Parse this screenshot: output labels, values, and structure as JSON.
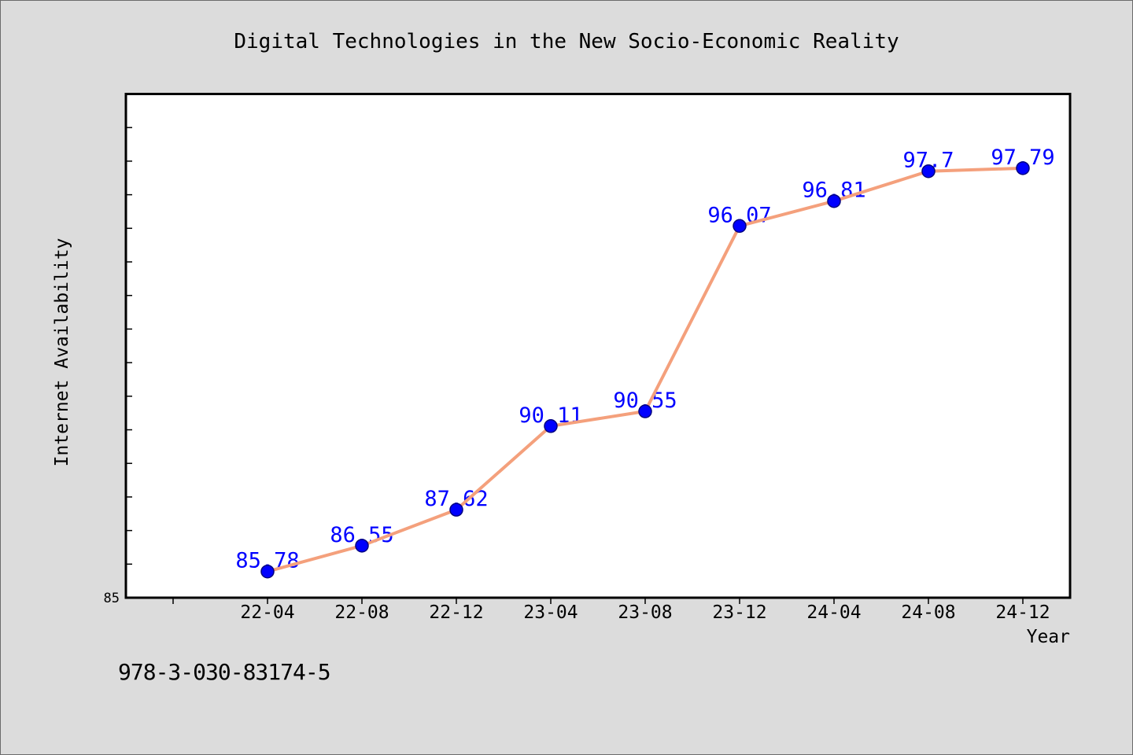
{
  "chart_data": {
    "type": "line",
    "title": "Digital Technologies in the New Socio-Economic Reality",
    "xlabel": "Year",
    "ylabel": "Internet Availability",
    "categories": [
      "22-04",
      "22-08",
      "22-12",
      "23-04",
      "23-08",
      "23-12",
      "24-04",
      "24-08",
      "24-12"
    ],
    "series": [
      {
        "values": [
          85.78,
          86.55,
          87.62,
          90.11,
          90.55,
          96.07,
          96.81,
          97.7,
          97.79
        ]
      }
    ],
    "data_labels": true,
    "ylim": [
      85,
      100
    ],
    "ytick_step": 1,
    "ytick_labels": [
      "85"
    ],
    "grid": false,
    "colors": {
      "background": "#dcdcdc",
      "plot_background": "#ffffff",
      "axis": "#000000",
      "line": "#f4a07c",
      "marker": "#0000ff",
      "marker_edge": "#00007f",
      "data_label": "#0000ff"
    }
  },
  "footer": "978-3-030-83174-5"
}
